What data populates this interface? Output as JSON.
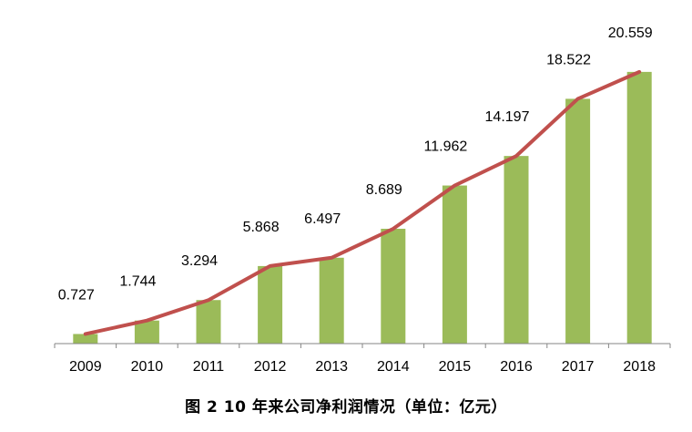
{
  "caption": "图 2 10 年来公司净利润情况（单位：亿元）",
  "chart_data": {
    "type": "bar",
    "categories": [
      "2009",
      "2010",
      "2011",
      "2012",
      "2013",
      "2014",
      "2015",
      "2016",
      "2017",
      "2018"
    ],
    "values": [
      0.727,
      1.744,
      3.294,
      5.868,
      6.497,
      8.689,
      11.962,
      14.197,
      18.522,
      20.559
    ],
    "data_labels": [
      "0.727",
      "1.744",
      "3.294",
      "5.868",
      "6.497",
      "8.689",
      "11.962",
      "14.197",
      "18.522",
      "20.559"
    ],
    "overlay": {
      "type": "line",
      "follows": "values"
    },
    "ylim": [
      0,
      22
    ],
    "grid": false,
    "legend": "none",
    "colors": {
      "bar": "#9BBB59",
      "line": "#C0504D",
      "axis": "#868686"
    }
  }
}
